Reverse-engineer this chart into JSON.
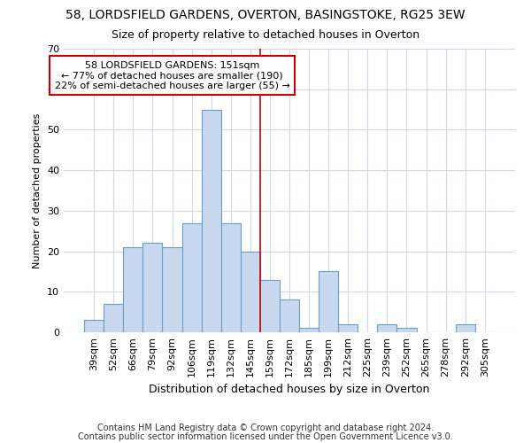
{
  "title1": "58, LORDSFIELD GARDENS, OVERTON, BASINGSTOKE, RG25 3EW",
  "title2": "Size of property relative to detached houses in Overton",
  "xlabel": "Distribution of detached houses by size in Overton",
  "ylabel": "Number of detached properties",
  "categories": [
    "39sqm",
    "52sqm",
    "66sqm",
    "79sqm",
    "92sqm",
    "106sqm",
    "119sqm",
    "132sqm",
    "145sqm",
    "159sqm",
    "172sqm",
    "185sqm",
    "199sqm",
    "212sqm",
    "225sqm",
    "239sqm",
    "252sqm",
    "265sqm",
    "278sqm",
    "292sqm",
    "305sqm"
  ],
  "values": [
    3,
    7,
    21,
    22,
    21,
    27,
    55,
    27,
    20,
    13,
    8,
    1,
    15,
    2,
    0,
    2,
    1,
    0,
    0,
    2,
    0
  ],
  "bar_color": "#c8d8ee",
  "bar_edge_color": "#6b9fc8",
  "ylim": [
    0,
    70
  ],
  "yticks": [
    0,
    10,
    20,
    30,
    40,
    50,
    60,
    70
  ],
  "property_line_x": 8.5,
  "property_line_color": "#cc0000",
  "annotation_line1": "58 LORDSFIELD GARDENS: 151sqm",
  "annotation_line2": "← 77% of detached houses are smaller (190)",
  "annotation_line3": "22% of semi-detached houses are larger (55) →",
  "annotation_box_color": "#cc0000",
  "footer1": "Contains HM Land Registry data © Crown copyright and database right 2024.",
  "footer2": "Contains public sector information licensed under the Open Government Licence v3.0.",
  "bg_color": "#ffffff",
  "grid_color": "#d0d8e8",
  "title_fontsize": 10,
  "subtitle_fontsize": 9,
  "xlabel_fontsize": 9,
  "ylabel_fontsize": 8,
  "tick_fontsize": 8,
  "footer_fontsize": 7
}
